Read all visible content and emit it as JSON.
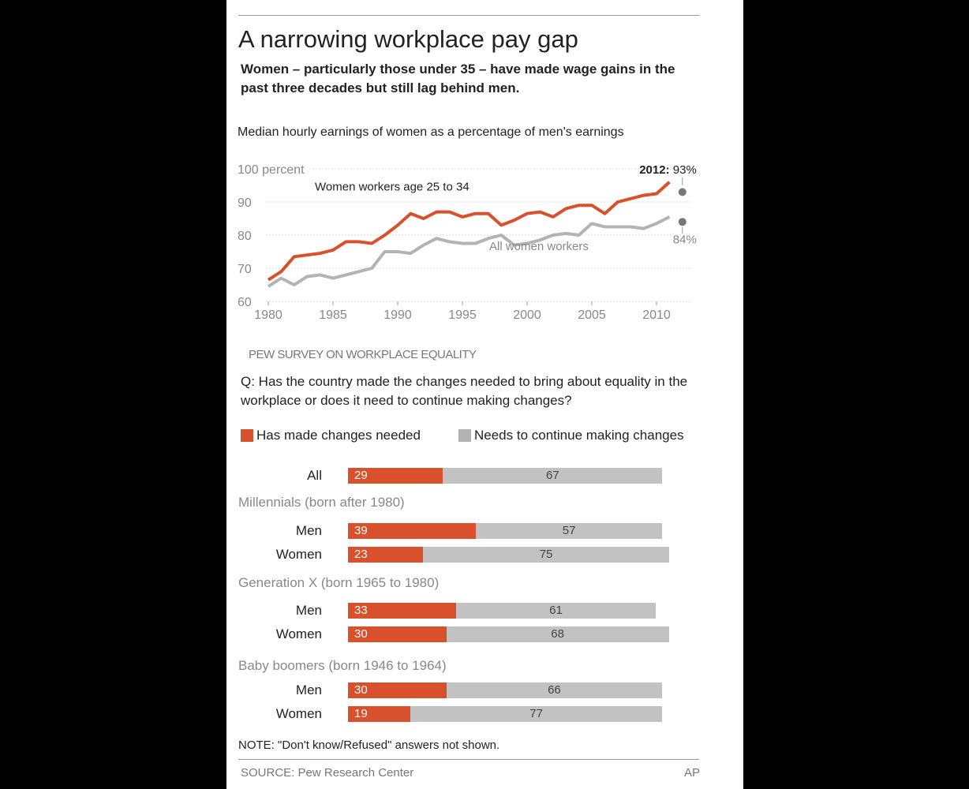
{
  "title": "A narrowing workplace pay gap",
  "subtitle": "Women – particularly those under 35 – have made wage gains in the past three decades but still lag behind men.",
  "colors": {
    "orange": "#d9512c",
    "gray": "#b3b3b3",
    "dot": "#777777"
  },
  "chart_data": [
    {
      "type": "line",
      "title": "Median hourly earnings of women as a percentage of men's earnings",
      "ylim": [
        60,
        100
      ],
      "yticks": [
        "100 percent",
        "90",
        "80",
        "70",
        "60"
      ],
      "ytick_values": [
        100,
        90,
        80,
        70,
        60
      ],
      "xticks": [
        "1980",
        "1985",
        "1990",
        "1995",
        "2000",
        "2005",
        "2010"
      ],
      "xtick_values": [
        1980,
        1985,
        1990,
        1995,
        2000,
        2005,
        2010
      ],
      "grid": true,
      "x": [
        1980,
        1981,
        1982,
        1983,
        1984,
        1985,
        1986,
        1987,
        1988,
        1989,
        1990,
        1991,
        1992,
        1993,
        1994,
        1995,
        1996,
        1997,
        1998,
        1999,
        2000,
        2001,
        2002,
        2003,
        2004,
        2005,
        2006,
        2007,
        2008,
        2009,
        2010,
        2011
      ],
      "series": [
        {
          "name": "Women workers age 25 to 34",
          "color": "#d9512c",
          "values": [
            66.5,
            69,
            73.5,
            74,
            74.5,
            75.5,
            78,
            78,
            77.5,
            80,
            83,
            86.5,
            85,
            87,
            87,
            85.5,
            86.5,
            86.5,
            83,
            84.5,
            86.5,
            87,
            85.5,
            88,
            89,
            89,
            86.5,
            90,
            91,
            92,
            92.5,
            96
          ],
          "endpoint": {
            "x": 2012,
            "y": 93,
            "label_year": "2012:",
            "label_value": "93%"
          }
        },
        {
          "name": "All women workers",
          "color": "#b3b3b3",
          "values": [
            64.5,
            67,
            65,
            67.5,
            68,
            67,
            68,
            69,
            70,
            75,
            75,
            74.5,
            77,
            79,
            78,
            77.5,
            77.5,
            79,
            80,
            77,
            77.5,
            78.5,
            80,
            80.5,
            80,
            83.5,
            82.5,
            82.5,
            82.5,
            82,
            83.5,
            85.5
          ],
          "endpoint": {
            "x": 2012,
            "y": 84,
            "label_value": "84%"
          }
        }
      ]
    },
    {
      "type": "bar",
      "section": "PEW SURVEY ON WORKPLACE EQUALITY",
      "question": "Q: Has the country made the changes needed to bring about equality in the workplace or does it need to continue making changes?",
      "legend": [
        "Has made changes needed",
        "Needs to continue making changes"
      ],
      "groups": [
        "Millennials (born after 1980)",
        "Generation X (born 1965 to 1980)",
        "Baby boomers (born 1946 to 1964)"
      ],
      "rows": [
        {
          "label": "All",
          "made": 29,
          "continue": 67
        },
        {
          "label": "Men",
          "made": 39,
          "continue": 57
        },
        {
          "label": "Women",
          "made": 23,
          "continue": 75
        },
        {
          "label": "Men",
          "made": 33,
          "continue": 61
        },
        {
          "label": "Women",
          "made": 30,
          "continue": 68
        },
        {
          "label": "Men",
          "made": 30,
          "continue": 66
        },
        {
          "label": "Women",
          "made": 19,
          "continue": 77
        }
      ]
    }
  ],
  "note": "NOTE: \"Don't know/Refused\" answers not shown.",
  "source": "SOURCE: Pew Research Center",
  "credit": "AP"
}
